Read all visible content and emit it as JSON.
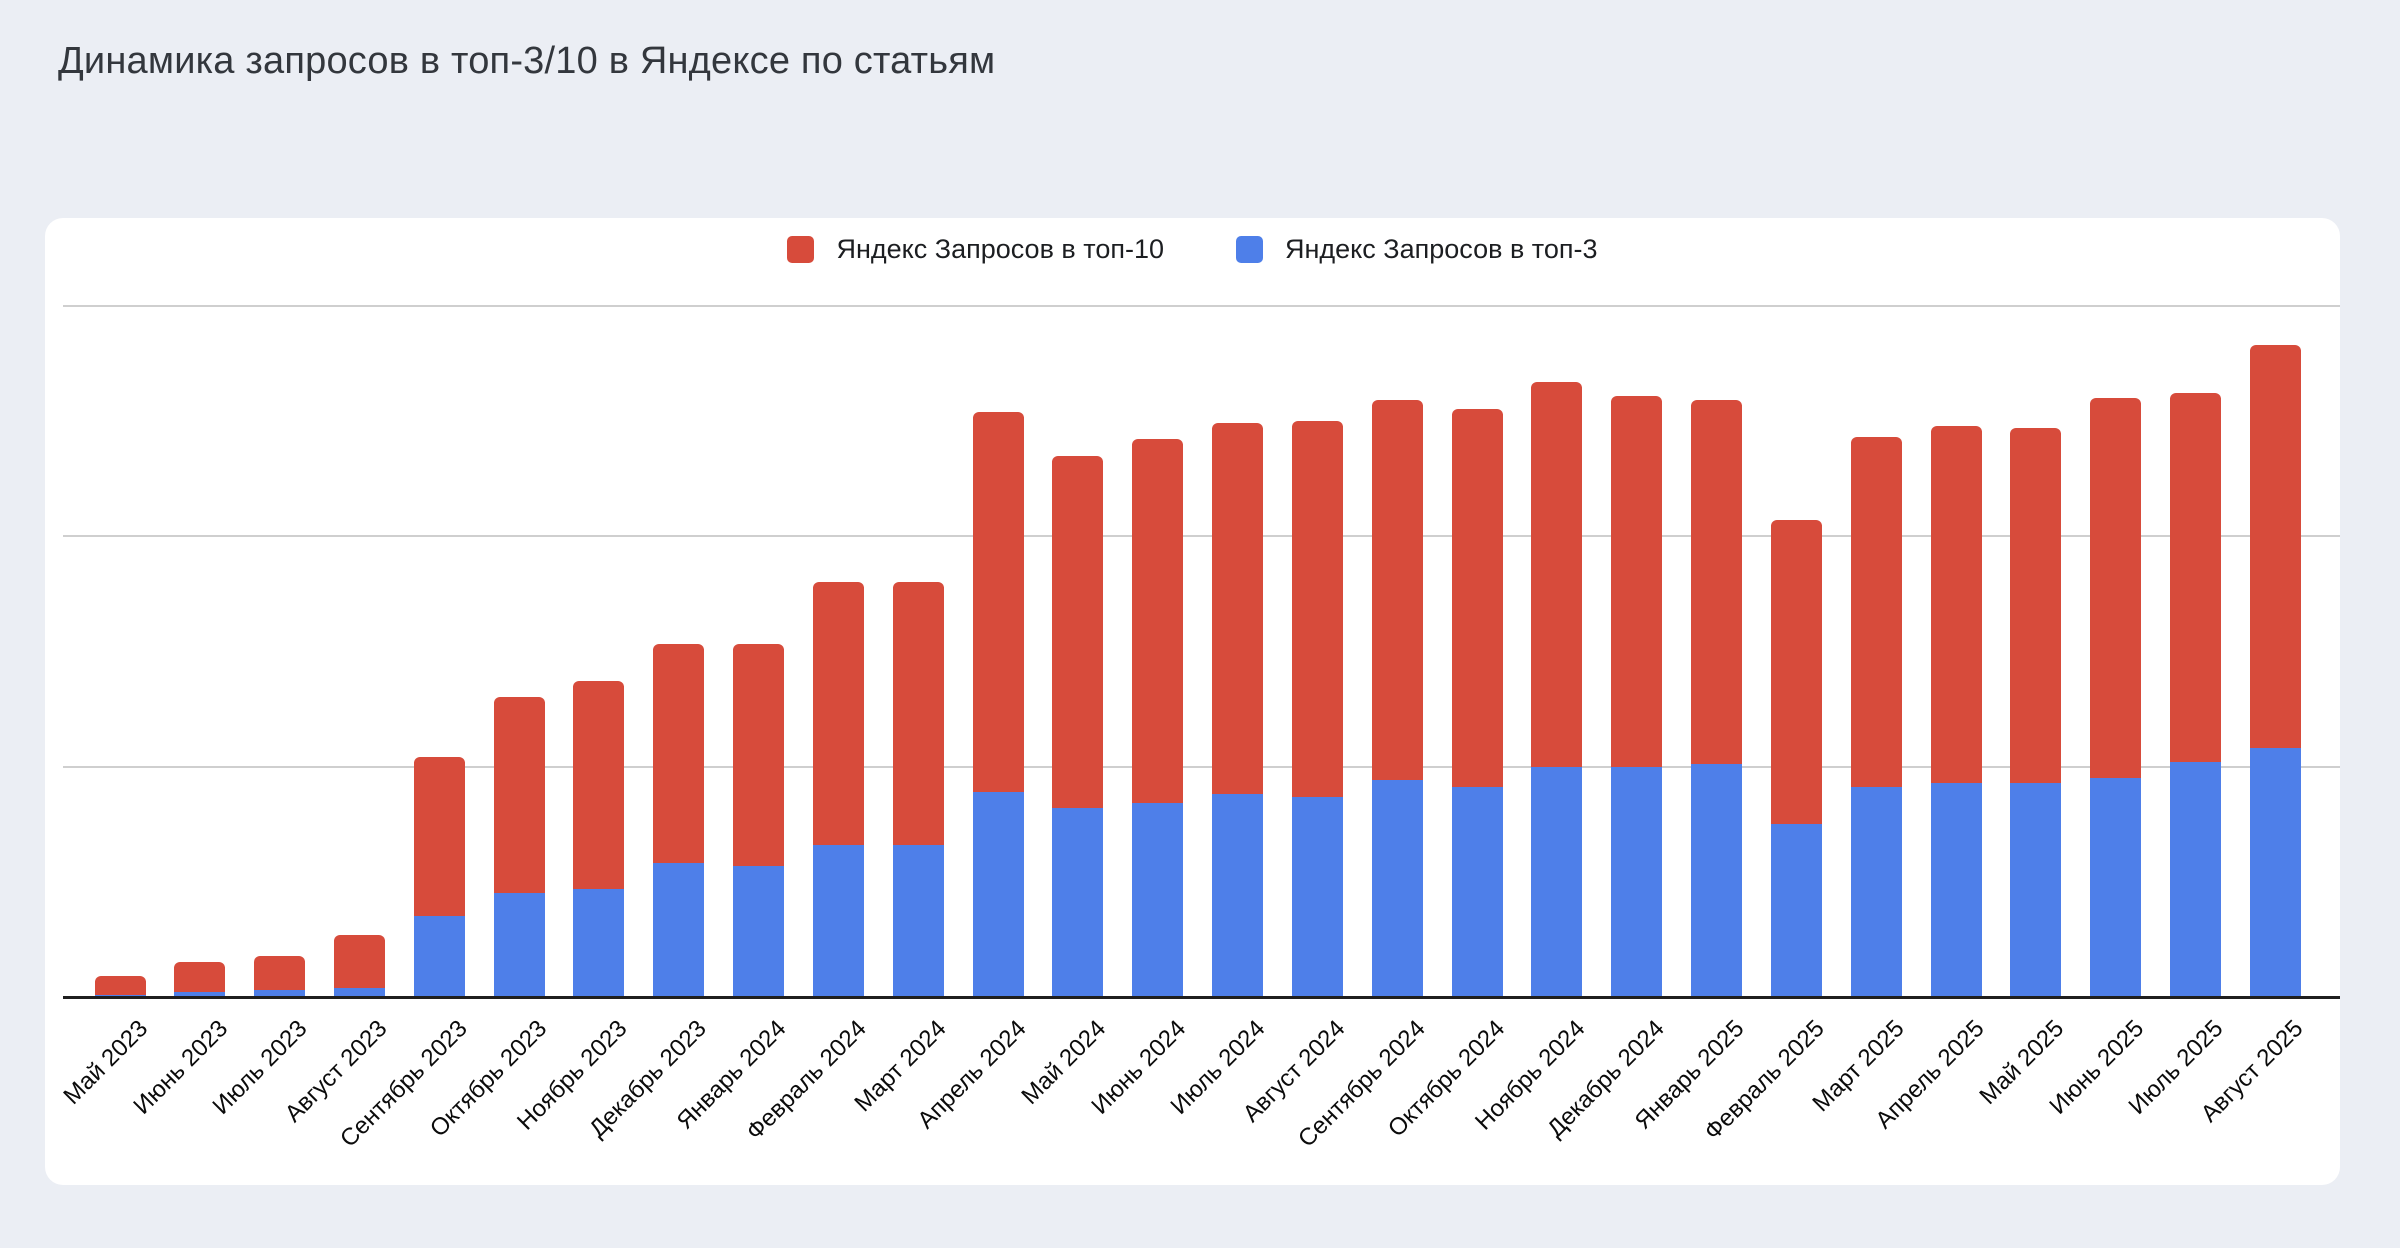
{
  "page": {
    "title": "Динамика запросов в топ-3/10 в Яндексе по статьям"
  },
  "legend": {
    "items": [
      {
        "label": "Яндекс Запросов в топ-10",
        "color": "#d74b3b"
      },
      {
        "label": "Яндекс Запросов в топ-3",
        "color": "#4e7fe9"
      }
    ]
  },
  "colors": {
    "background": "#ebeef4",
    "card": "#ffffff",
    "title": "#33373d",
    "gridline": "#cfcfcf",
    "axis_line": "#1f1f1f",
    "top10_red": "#d74b3b",
    "top3_blue": "#4e7fe9"
  },
  "chart_data": {
    "type": "bar",
    "subtype": "overlay-stacked-columns",
    "title": "Динамика запросов в топ-3/10 в Яндексе по статьям",
    "xlabel": "",
    "ylabel": "",
    "legend_position": "top",
    "grid": true,
    "y_axis_labels_visible": false,
    "ylim": [
      0,
      335
    ],
    "gridline_values": [
      100,
      200,
      300
    ],
    "note": "Blue (top-3) column is drawn in front of red (top-10) column from the same baseline; values are estimated in gridline units where one horizontal gridline step = 100.",
    "categories": [
      "Май 2023",
      "Июнь 2023",
      "Июль 2023",
      "Август 2023",
      "Сентябрь 2023",
      "Октябрь 2023",
      "Ноябрь 2023",
      "Декабрь 2023",
      "Январь 2024",
      "Февраль 2024",
      "Март 2024",
      "Апрель 2024",
      "Май 2024",
      "Июнь 2024",
      "Июль 2024",
      "Август 2024",
      "Сентябрь 2024",
      "Октябрь 2024",
      "Ноябрь 2024",
      "Декабрь 2024",
      "Январь 2025",
      "Февраль 2025",
      "Март 2025",
      "Апрель 2025",
      "Май 2025",
      "Июнь 2025",
      "Июль 2025",
      "Август 2025"
    ],
    "series": [
      {
        "name": "Яндекс Запросов в топ-10",
        "color": "#d74b3b",
        "values": [
          9,
          15,
          18,
          27,
          104,
          130,
          137,
          153,
          153,
          180,
          180,
          254,
          235,
          242,
          249,
          250,
          259,
          255,
          267,
          261,
          259,
          207,
          243,
          248,
          247,
          260,
          262,
          283
        ]
      },
      {
        "name": "Яндекс Запросов в топ-3",
        "color": "#4e7fe9",
        "values": [
          1,
          2,
          3,
          4,
          35,
          45,
          47,
          58,
          57,
          66,
          66,
          89,
          82,
          84,
          88,
          87,
          94,
          91,
          100,
          100,
          101,
          75,
          91,
          93,
          93,
          95,
          102,
          108
        ]
      }
    ]
  }
}
